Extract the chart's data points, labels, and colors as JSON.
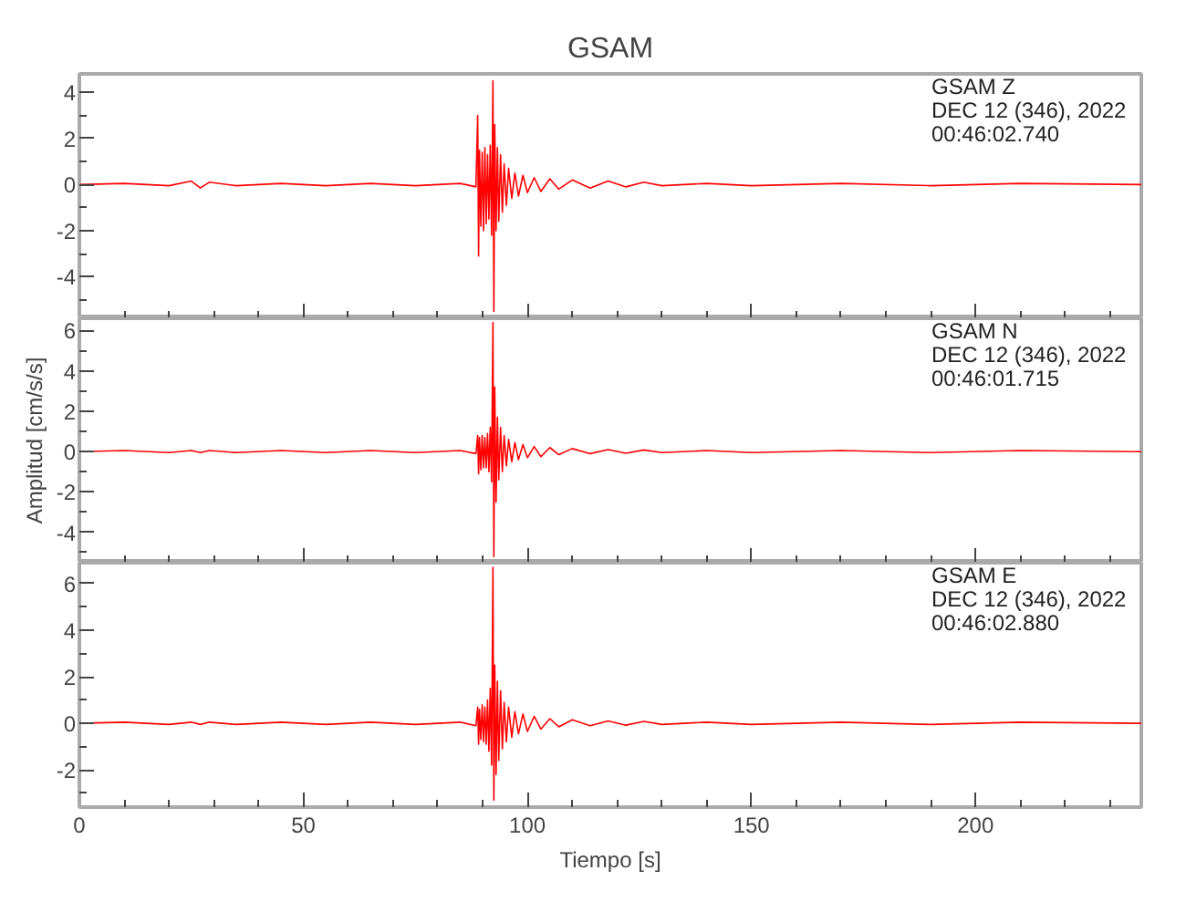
{
  "chart_data": [
    {
      "type": "line",
      "title": "GSAM",
      "annotations": [
        "GSAM   Z",
        "DEC 12 (346), 2022",
        "00:46:02.740"
      ],
      "xlim": [
        0,
        237
      ],
      "xticks": [
        0,
        50,
        100,
        150,
        200
      ],
      "ylim": [
        -5.8,
        4.8
      ],
      "yticks": [
        -4,
        -2,
        0,
        2,
        4
      ],
      "tick_labels": "y",
      "series": [
        {
          "color": "#ff0000",
          "x": [
            0,
            10,
            20,
            25,
            27,
            29,
            35,
            45,
            55,
            65,
            75,
            85,
            88.5,
            88.9,
            89.1,
            89.3,
            89.6,
            89.9,
            90.2,
            90.5,
            90.8,
            91.1,
            91.4,
            91.7,
            92.0,
            92.3,
            92.5,
            92.7,
            93.0,
            93.3,
            93.6,
            94.0,
            94.4,
            94.8,
            95.3,
            95.8,
            96.5,
            97.2,
            98,
            99,
            100,
            101.5,
            103,
            105,
            107,
            110,
            114,
            118,
            122,
            126,
            130,
            140,
            150,
            170,
            190,
            210,
            237
          ],
          "values": [
            0,
            0.05,
            -0.05,
            0.15,
            -0.15,
            0.1,
            -0.05,
            0.05,
            -0.05,
            0.05,
            -0.05,
            0.05,
            -0.1,
            3.0,
            -3.1,
            1.5,
            -1.8,
            1.4,
            -2.0,
            1.6,
            -1.7,
            1.3,
            -1.5,
            1.7,
            -2.2,
            4.5,
            -5.5,
            2.6,
            -2.0,
            1.6,
            -1.6,
            1.3,
            -1.2,
            0.9,
            -0.9,
            0.7,
            -0.6,
            0.5,
            -0.5,
            0.4,
            -0.35,
            0.3,
            -0.3,
            0.25,
            -0.2,
            0.2,
            -0.15,
            0.15,
            -0.1,
            0.1,
            -0.05,
            0.05,
            -0.05,
            0.05,
            -0.05,
            0.05,
            0
          ]
        }
      ]
    },
    {
      "type": "line",
      "ylabel": "Amplitud [cm/s/s]",
      "annotations": [
        "GSAM   N",
        "DEC 12 (346), 2022",
        "00:46:01.715"
      ],
      "xlim": [
        0,
        237
      ],
      "xticks": [
        0,
        50,
        100,
        150,
        200
      ],
      "ylim": [
        -5.5,
        6.6
      ],
      "yticks": [
        -4,
        -2,
        0,
        2,
        4,
        6
      ],
      "tick_labels": "y",
      "series": [
        {
          "color": "#ff0000",
          "x": [
            0,
            10,
            20,
            25,
            27,
            29,
            35,
            45,
            55,
            65,
            75,
            85,
            88.5,
            88.9,
            89.1,
            89.3,
            89.6,
            89.9,
            90.2,
            90.5,
            90.8,
            91.1,
            91.4,
            91.7,
            92.0,
            92.3,
            92.5,
            92.7,
            93.0,
            93.3,
            93.6,
            94.0,
            94.4,
            94.8,
            95.3,
            95.8,
            96.5,
            97.2,
            98,
            99,
            100,
            101.5,
            103,
            105,
            107,
            110,
            114,
            118,
            122,
            126,
            130,
            140,
            150,
            170,
            190,
            210,
            237
          ],
          "values": [
            0,
            0.05,
            -0.05,
            0.05,
            -0.05,
            0.05,
            -0.05,
            0.05,
            -0.05,
            0.05,
            -0.05,
            0.05,
            -0.1,
            0.8,
            -1.1,
            0.7,
            -0.9,
            0.8,
            -0.8,
            0.7,
            -0.8,
            0.9,
            -1.0,
            1.2,
            -1.5,
            6.4,
            -5.2,
            3.2,
            -2.5,
            1.7,
            -1.4,
            1.2,
            -1.0,
            0.8,
            -0.7,
            0.6,
            -0.5,
            0.45,
            -0.4,
            0.35,
            -0.3,
            0.25,
            -0.25,
            0.2,
            -0.15,
            0.15,
            -0.1,
            0.1,
            -0.08,
            0.08,
            -0.05,
            0.05,
            -0.05,
            0.05,
            -0.05,
            0.05,
            0
          ]
        }
      ]
    },
    {
      "type": "line",
      "xlabel": "Tiempo [s]",
      "annotations": [
        "GSAM   E",
        "DEC 12 (346), 2022",
        "00:46:02.880"
      ],
      "xlim": [
        0,
        237
      ],
      "xticks": [
        0,
        50,
        100,
        150,
        200
      ],
      "ylim": [
        -3.6,
        6.9
      ],
      "yticks": [
        -2,
        0,
        2,
        4,
        6
      ],
      "series": [
        {
          "color": "#ff0000",
          "x": [
            0,
            10,
            20,
            25,
            27,
            29,
            35,
            45,
            55,
            65,
            75,
            85,
            88.5,
            88.9,
            89.1,
            89.3,
            89.6,
            89.9,
            90.2,
            90.5,
            90.8,
            91.1,
            91.4,
            91.7,
            92.0,
            92.3,
            92.5,
            92.7,
            93.0,
            93.3,
            93.6,
            94.0,
            94.4,
            94.8,
            95.3,
            95.8,
            96.5,
            97.2,
            98,
            99,
            100,
            101.5,
            103,
            105,
            107,
            110,
            114,
            118,
            122,
            126,
            130,
            140,
            150,
            170,
            190,
            210,
            237
          ],
          "values": [
            0,
            0.05,
            -0.05,
            0.05,
            -0.05,
            0.05,
            -0.05,
            0.05,
            -0.05,
            0.05,
            -0.05,
            0.05,
            -0.1,
            0.7,
            -0.9,
            0.6,
            -0.7,
            0.8,
            -0.8,
            0.7,
            -0.9,
            1.0,
            -1.2,
            1.5,
            -1.8,
            6.7,
            -3.3,
            2.5,
            -2.2,
            1.8,
            -1.6,
            1.4,
            -1.1,
            0.9,
            -0.8,
            0.7,
            -0.6,
            0.5,
            -0.45,
            0.4,
            -0.35,
            0.3,
            -0.25,
            0.2,
            -0.15,
            0.15,
            -0.1,
            0.1,
            -0.08,
            0.08,
            -0.05,
            0.05,
            -0.05,
            0.05,
            -0.05,
            0.05,
            0
          ]
        }
      ]
    }
  ]
}
